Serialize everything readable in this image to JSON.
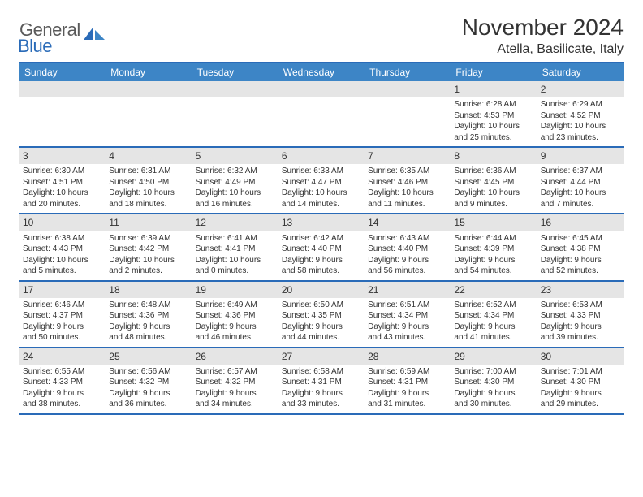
{
  "logo": {
    "general": "General",
    "blue": "Blue"
  },
  "title": "November 2024",
  "location": "Atella, Basilicate, Italy",
  "colors": {
    "header_bar": "#3d85c6",
    "border": "#2a6bb8",
    "daynum_bg": "#e5e5e5",
    "text": "#333333",
    "bg": "#ffffff"
  },
  "weekdays": [
    "Sunday",
    "Monday",
    "Tuesday",
    "Wednesday",
    "Thursday",
    "Friday",
    "Saturday"
  ],
  "weeks": [
    [
      null,
      null,
      null,
      null,
      null,
      {
        "n": "1",
        "sr": "Sunrise: 6:28 AM",
        "ss": "Sunset: 4:53 PM",
        "d1": "Daylight: 10 hours",
        "d2": "and 25 minutes."
      },
      {
        "n": "2",
        "sr": "Sunrise: 6:29 AM",
        "ss": "Sunset: 4:52 PM",
        "d1": "Daylight: 10 hours",
        "d2": "and 23 minutes."
      }
    ],
    [
      {
        "n": "3",
        "sr": "Sunrise: 6:30 AM",
        "ss": "Sunset: 4:51 PM",
        "d1": "Daylight: 10 hours",
        "d2": "and 20 minutes."
      },
      {
        "n": "4",
        "sr": "Sunrise: 6:31 AM",
        "ss": "Sunset: 4:50 PM",
        "d1": "Daylight: 10 hours",
        "d2": "and 18 minutes."
      },
      {
        "n": "5",
        "sr": "Sunrise: 6:32 AM",
        "ss": "Sunset: 4:49 PM",
        "d1": "Daylight: 10 hours",
        "d2": "and 16 minutes."
      },
      {
        "n": "6",
        "sr": "Sunrise: 6:33 AM",
        "ss": "Sunset: 4:47 PM",
        "d1": "Daylight: 10 hours",
        "d2": "and 14 minutes."
      },
      {
        "n": "7",
        "sr": "Sunrise: 6:35 AM",
        "ss": "Sunset: 4:46 PM",
        "d1": "Daylight: 10 hours",
        "d2": "and 11 minutes."
      },
      {
        "n": "8",
        "sr": "Sunrise: 6:36 AM",
        "ss": "Sunset: 4:45 PM",
        "d1": "Daylight: 10 hours",
        "d2": "and 9 minutes."
      },
      {
        "n": "9",
        "sr": "Sunrise: 6:37 AM",
        "ss": "Sunset: 4:44 PM",
        "d1": "Daylight: 10 hours",
        "d2": "and 7 minutes."
      }
    ],
    [
      {
        "n": "10",
        "sr": "Sunrise: 6:38 AM",
        "ss": "Sunset: 4:43 PM",
        "d1": "Daylight: 10 hours",
        "d2": "and 5 minutes."
      },
      {
        "n": "11",
        "sr": "Sunrise: 6:39 AM",
        "ss": "Sunset: 4:42 PM",
        "d1": "Daylight: 10 hours",
        "d2": "and 2 minutes."
      },
      {
        "n": "12",
        "sr": "Sunrise: 6:41 AM",
        "ss": "Sunset: 4:41 PM",
        "d1": "Daylight: 10 hours",
        "d2": "and 0 minutes."
      },
      {
        "n": "13",
        "sr": "Sunrise: 6:42 AM",
        "ss": "Sunset: 4:40 PM",
        "d1": "Daylight: 9 hours",
        "d2": "and 58 minutes."
      },
      {
        "n": "14",
        "sr": "Sunrise: 6:43 AM",
        "ss": "Sunset: 4:40 PM",
        "d1": "Daylight: 9 hours",
        "d2": "and 56 minutes."
      },
      {
        "n": "15",
        "sr": "Sunrise: 6:44 AM",
        "ss": "Sunset: 4:39 PM",
        "d1": "Daylight: 9 hours",
        "d2": "and 54 minutes."
      },
      {
        "n": "16",
        "sr": "Sunrise: 6:45 AM",
        "ss": "Sunset: 4:38 PM",
        "d1": "Daylight: 9 hours",
        "d2": "and 52 minutes."
      }
    ],
    [
      {
        "n": "17",
        "sr": "Sunrise: 6:46 AM",
        "ss": "Sunset: 4:37 PM",
        "d1": "Daylight: 9 hours",
        "d2": "and 50 minutes."
      },
      {
        "n": "18",
        "sr": "Sunrise: 6:48 AM",
        "ss": "Sunset: 4:36 PM",
        "d1": "Daylight: 9 hours",
        "d2": "and 48 minutes."
      },
      {
        "n": "19",
        "sr": "Sunrise: 6:49 AM",
        "ss": "Sunset: 4:36 PM",
        "d1": "Daylight: 9 hours",
        "d2": "and 46 minutes."
      },
      {
        "n": "20",
        "sr": "Sunrise: 6:50 AM",
        "ss": "Sunset: 4:35 PM",
        "d1": "Daylight: 9 hours",
        "d2": "and 44 minutes."
      },
      {
        "n": "21",
        "sr": "Sunrise: 6:51 AM",
        "ss": "Sunset: 4:34 PM",
        "d1": "Daylight: 9 hours",
        "d2": "and 43 minutes."
      },
      {
        "n": "22",
        "sr": "Sunrise: 6:52 AM",
        "ss": "Sunset: 4:34 PM",
        "d1": "Daylight: 9 hours",
        "d2": "and 41 minutes."
      },
      {
        "n": "23",
        "sr": "Sunrise: 6:53 AM",
        "ss": "Sunset: 4:33 PM",
        "d1": "Daylight: 9 hours",
        "d2": "and 39 minutes."
      }
    ],
    [
      {
        "n": "24",
        "sr": "Sunrise: 6:55 AM",
        "ss": "Sunset: 4:33 PM",
        "d1": "Daylight: 9 hours",
        "d2": "and 38 minutes."
      },
      {
        "n": "25",
        "sr": "Sunrise: 6:56 AM",
        "ss": "Sunset: 4:32 PM",
        "d1": "Daylight: 9 hours",
        "d2": "and 36 minutes."
      },
      {
        "n": "26",
        "sr": "Sunrise: 6:57 AM",
        "ss": "Sunset: 4:32 PM",
        "d1": "Daylight: 9 hours",
        "d2": "and 34 minutes."
      },
      {
        "n": "27",
        "sr": "Sunrise: 6:58 AM",
        "ss": "Sunset: 4:31 PM",
        "d1": "Daylight: 9 hours",
        "d2": "and 33 minutes."
      },
      {
        "n": "28",
        "sr": "Sunrise: 6:59 AM",
        "ss": "Sunset: 4:31 PM",
        "d1": "Daylight: 9 hours",
        "d2": "and 31 minutes."
      },
      {
        "n": "29",
        "sr": "Sunrise: 7:00 AM",
        "ss": "Sunset: 4:30 PM",
        "d1": "Daylight: 9 hours",
        "d2": "and 30 minutes."
      },
      {
        "n": "30",
        "sr": "Sunrise: 7:01 AM",
        "ss": "Sunset: 4:30 PM",
        "d1": "Daylight: 9 hours",
        "d2": "and 29 minutes."
      }
    ]
  ]
}
